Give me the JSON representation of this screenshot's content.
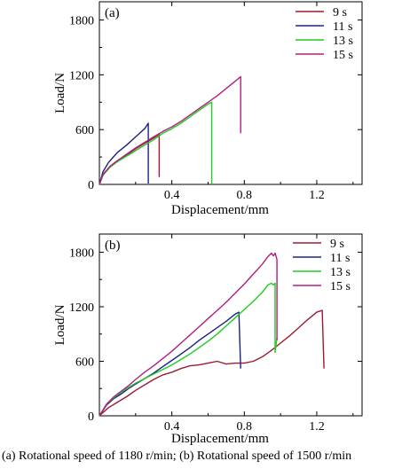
{
  "chart_data": [
    {
      "type": "line",
      "panel_label": "(a)",
      "xlabel": "Displacement/mm",
      "ylabel": "Load/N",
      "xlim": [
        0,
        1.45
      ],
      "ylim": [
        0,
        2000
      ],
      "xticks": [
        0.4,
        0.8,
        1.2
      ],
      "xtick_labels": [
        "0.4",
        "0.8",
        "1.2"
      ],
      "yticks": [
        0,
        600,
        1200,
        1800
      ],
      "ytick_labels": [
        "0",
        "600",
        "1200",
        "1800"
      ],
      "grid": false,
      "legend": "top-right",
      "series": [
        {
          "name": "9 s",
          "color": "#9b1b30",
          "points": [
            [
              0,
              0
            ],
            [
              0.02,
              110
            ],
            [
              0.06,
              200
            ],
            [
              0.1,
              260
            ],
            [
              0.15,
              320
            ],
            [
              0.2,
              390
            ],
            [
              0.25,
              450
            ],
            [
              0.3,
              510
            ],
            [
              0.33,
              550
            ],
            [
              0.33,
              80
            ]
          ]
        },
        {
          "name": "11 s",
          "color": "#1a237e",
          "points": [
            [
              0,
              0
            ],
            [
              0.02,
              140
            ],
            [
              0.05,
              240
            ],
            [
              0.1,
              350
            ],
            [
              0.15,
              430
            ],
            [
              0.2,
              520
            ],
            [
              0.25,
              610
            ],
            [
              0.27,
              670
            ],
            [
              0.27,
              10
            ]
          ]
        },
        {
          "name": "13 s",
          "color": "#22cc22",
          "points": [
            [
              0,
              0
            ],
            [
              0.02,
              100
            ],
            [
              0.06,
              190
            ],
            [
              0.1,
              250
            ],
            [
              0.15,
              310
            ],
            [
              0.2,
              370
            ],
            [
              0.25,
              430
            ],
            [
              0.3,
              490
            ],
            [
              0.35,
              560
            ],
            [
              0.4,
              610
            ],
            [
              0.45,
              670
            ],
            [
              0.5,
              740
            ],
            [
              0.55,
              810
            ],
            [
              0.6,
              880
            ],
            [
              0.62,
              900
            ],
            [
              0.62,
              10
            ]
          ]
        },
        {
          "name": "15 s",
          "color": "#b0207f",
          "points": [
            [
              0,
              0
            ],
            [
              0.02,
              110
            ],
            [
              0.06,
              200
            ],
            [
              0.1,
              260
            ],
            [
              0.15,
              330
            ],
            [
              0.2,
              400
            ],
            [
              0.25,
              460
            ],
            [
              0.3,
              520
            ],
            [
              0.35,
              580
            ],
            [
              0.4,
              630
            ],
            [
              0.45,
              690
            ],
            [
              0.5,
              760
            ],
            [
              0.55,
              830
            ],
            [
              0.6,
              900
            ],
            [
              0.65,
              970
            ],
            [
              0.7,
              1050
            ],
            [
              0.75,
              1130
            ],
            [
              0.78,
              1180
            ],
            [
              0.78,
              560
            ]
          ]
        }
      ]
    },
    {
      "type": "line",
      "panel_label": "(b)",
      "xlabel": "Displacement/mm",
      "ylabel": "Load/N",
      "xlim": [
        0,
        1.45
      ],
      "ylim": [
        0,
        2000
      ],
      "xticks": [
        0.4,
        0.8,
        1.2
      ],
      "xtick_labels": [
        "0.4",
        "0.8",
        "1.2"
      ],
      "yticks": [
        0,
        600,
        1200,
        1800
      ],
      "ytick_labels": [
        "0",
        "600",
        "1200",
        "1800"
      ],
      "grid": false,
      "legend": "top-right",
      "series": [
        {
          "name": "9 s",
          "color": "#9b1b30",
          "points": [
            [
              0,
              0
            ],
            [
              0.05,
              90
            ],
            [
              0.1,
              150
            ],
            [
              0.15,
              210
            ],
            [
              0.2,
              280
            ],
            [
              0.25,
              340
            ],
            [
              0.3,
              400
            ],
            [
              0.35,
              450
            ],
            [
              0.4,
              480
            ],
            [
              0.45,
              520
            ],
            [
              0.5,
              550
            ],
            [
              0.55,
              560
            ],
            [
              0.6,
              580
            ],
            [
              0.65,
              600
            ],
            [
              0.7,
              570
            ],
            [
              0.75,
              580
            ],
            [
              0.8,
              580
            ],
            [
              0.85,
              600
            ],
            [
              0.9,
              650
            ],
            [
              0.95,
              720
            ],
            [
              1.0,
              800
            ],
            [
              1.05,
              880
            ],
            [
              1.1,
              970
            ],
            [
              1.15,
              1060
            ],
            [
              1.2,
              1140
            ],
            [
              1.23,
              1160
            ],
            [
              1.24,
              520
            ]
          ]
        },
        {
          "name": "11 s",
          "color": "#1a237e",
          "points": [
            [
              0,
              0
            ],
            [
              0.04,
              120
            ],
            [
              0.08,
              190
            ],
            [
              0.12,
              240
            ],
            [
              0.16,
              300
            ],
            [
              0.2,
              350
            ],
            [
              0.25,
              410
            ],
            [
              0.3,
              470
            ],
            [
              0.35,
              540
            ],
            [
              0.4,
              610
            ],
            [
              0.45,
              680
            ],
            [
              0.5,
              750
            ],
            [
              0.55,
              830
            ],
            [
              0.6,
              900
            ],
            [
              0.65,
              970
            ],
            [
              0.7,
              1040
            ],
            [
              0.75,
              1120
            ],
            [
              0.77,
              1140
            ],
            [
              0.78,
              520
            ]
          ]
        },
        {
          "name": "13 s",
          "color": "#22cc22",
          "points": [
            [
              0,
              0
            ],
            [
              0.04,
              130
            ],
            [
              0.08,
              200
            ],
            [
              0.12,
              260
            ],
            [
              0.16,
              310
            ],
            [
              0.2,
              360
            ],
            [
              0.25,
              410
            ],
            [
              0.3,
              460
            ],
            [
              0.35,
              510
            ],
            [
              0.4,
              560
            ],
            [
              0.45,
              620
            ],
            [
              0.5,
              680
            ],
            [
              0.55,
              750
            ],
            [
              0.6,
              820
            ],
            [
              0.65,
              900
            ],
            [
              0.7,
              990
            ],
            [
              0.75,
              1080
            ],
            [
              0.8,
              1170
            ],
            [
              0.85,
              1260
            ],
            [
              0.9,
              1360
            ],
            [
              0.93,
              1440
            ],
            [
              0.95,
              1460
            ],
            [
              0.96,
              1440
            ],
            [
              0.97,
              1460
            ],
            [
              0.97,
              700
            ],
            [
              0.98,
              860
            ]
          ]
        },
        {
          "name": "15 s",
          "color": "#b0207f",
          "points": [
            [
              0,
              0
            ],
            [
              0.04,
              130
            ],
            [
              0.08,
              210
            ],
            [
              0.12,
              270
            ],
            [
              0.16,
              330
            ],
            [
              0.2,
              400
            ],
            [
              0.25,
              480
            ],
            [
              0.3,
              550
            ],
            [
              0.35,
              630
            ],
            [
              0.4,
              710
            ],
            [
              0.45,
              800
            ],
            [
              0.5,
              890
            ],
            [
              0.55,
              980
            ],
            [
              0.6,
              1070
            ],
            [
              0.65,
              1160
            ],
            [
              0.7,
              1250
            ],
            [
              0.75,
              1350
            ],
            [
              0.8,
              1450
            ],
            [
              0.85,
              1560
            ],
            [
              0.9,
              1670
            ],
            [
              0.93,
              1750
            ],
            [
              0.95,
              1790
            ],
            [
              0.96,
              1760
            ],
            [
              0.97,
              1790
            ],
            [
              0.98,
              1720
            ],
            [
              0.98,
              830
            ]
          ]
        }
      ]
    }
  ],
  "caption": "(a)  Rotational speed of 1180 r/min; (b) Rotational speed of 1500 r/min"
}
